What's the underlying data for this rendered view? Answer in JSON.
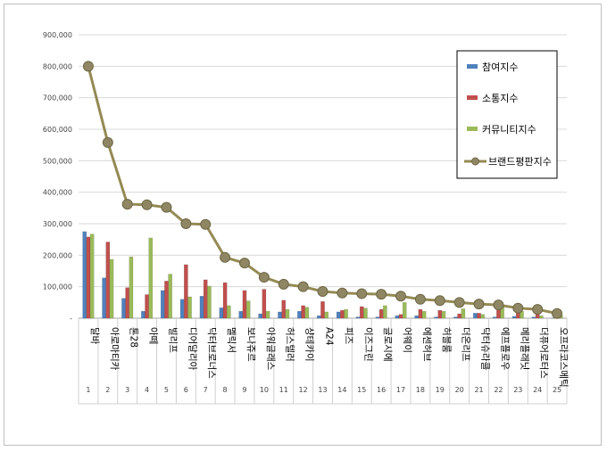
{
  "chart_data": {
    "type": "bar",
    "title": "",
    "xlabel": "",
    "ylabel": "",
    "ylim": [
      0,
      900000
    ],
    "y_ticks": [
      "-",
      "100,000",
      "200,000",
      "300,000",
      "400,000",
      "500,000",
      "600,000",
      "700,000",
      "800,000",
      "900,000"
    ],
    "grid": true,
    "legend_position": "top-right",
    "categories": [
      "달바",
      "아로마티카",
      "톤28",
      "아떼",
      "빌리프",
      "디어달리아",
      "닥터브로너스",
      "멜릭서",
      "보나쥬르",
      "아워글래스",
      "허스텔러",
      "샹테카이",
      "A24",
      "피즈",
      "이즈그린",
      "글로시에",
      "어웨이",
      "에센허브",
      "허블룸",
      "더온리프",
      "닥터슈라클",
      "에프플로우",
      "메리플래닛",
      "더퓨어로터스",
      "오프라코스메틱"
    ],
    "ranks": [
      "1",
      "2",
      "3",
      "4",
      "5",
      "6",
      "7",
      "8",
      "9",
      "10",
      "11",
      "12",
      "13",
      "14",
      "15",
      "16",
      "17",
      "18",
      "19",
      "20",
      "21",
      "22",
      "23",
      "24",
      "25"
    ],
    "series": [
      {
        "name": "참여지수",
        "kind": "bar",
        "color": "#4f81bd",
        "values": [
          275000,
          128000,
          63000,
          22000,
          88000,
          60000,
          70000,
          33000,
          22000,
          14000,
          20000,
          22000,
          8000,
          20000,
          4000,
          4000,
          8000,
          8000,
          4000,
          4000,
          16000,
          4000,
          6000,
          4000,
          1000
        ]
      },
      {
        "name": "소통지수",
        "kind": "bar",
        "color": "#c0504d",
        "values": [
          258000,
          242000,
          97000,
          75000,
          118000,
          170000,
          122000,
          113000,
          88000,
          92000,
          57000,
          40000,
          53000,
          25000,
          37000,
          28000,
          12000,
          28000,
          25000,
          14000,
          16000,
          28000,
          18000,
          20000,
          3000
        ]
      },
      {
        "name": "커뮤니티지수",
        "kind": "bar",
        "color": "#9bbb59",
        "values": [
          267000,
          187000,
          195000,
          255000,
          140000,
          68000,
          102000,
          40000,
          55000,
          22000,
          28000,
          35000,
          20000,
          28000,
          32000,
          40000,
          50000,
          22000,
          22000,
          30000,
          12000,
          40000,
          22000,
          8000,
          10000
        ]
      },
      {
        "name": "브랜드평판지수",
        "kind": "line",
        "color": "#948a54",
        "values": [
          800000,
          558000,
          362000,
          360000,
          352000,
          300000,
          298000,
          193000,
          175000,
          130000,
          108000,
          100000,
          85000,
          80000,
          78000,
          76000,
          70000,
          60000,
          56000,
          50000,
          45000,
          42000,
          32000,
          28000,
          15000
        ]
      }
    ]
  }
}
